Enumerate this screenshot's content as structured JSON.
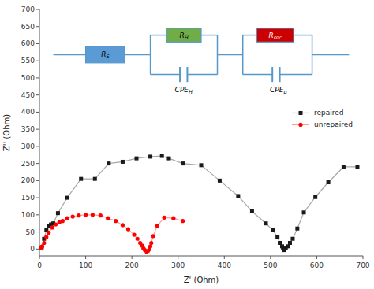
{
  "chart_data": {
    "type": "line",
    "xlabel": "Z' (Ohm)",
    "ylabel": "Z'' (Ohm)",
    "xlim": [
      0,
      700
    ],
    "ylim": [
      -20,
      700
    ],
    "xticks": [
      0,
      100,
      200,
      300,
      400,
      500,
      600,
      700
    ],
    "yticks": [
      0,
      50,
      100,
      150,
      200,
      250,
      300,
      350,
      400,
      450,
      500,
      550,
      600,
      650,
      700
    ],
    "grid": false,
    "legend": "right",
    "series": [
      {
        "name": "repaired",
        "color": "#1a1a1a",
        "marker": "square",
        "x": [
          5,
          10,
          15,
          20,
          25,
          30,
          40,
          60,
          90,
          120,
          150,
          180,
          210,
          240,
          265,
          280,
          310,
          350,
          390,
          430,
          460,
          490,
          505,
          515,
          520,
          525,
          527,
          530,
          533,
          537,
          542,
          548,
          558,
          572,
          597,
          625,
          658,
          688
        ],
        "values": [
          5,
          30,
          55,
          68,
          72,
          75,
          105,
          150,
          205,
          205,
          250,
          255,
          265,
          270,
          272,
          265,
          250,
          245,
          200,
          155,
          110,
          75,
          55,
          35,
          18,
          8,
          2,
          -3,
          2,
          8,
          18,
          30,
          60,
          107,
          152,
          195,
          240,
          240
        ]
      },
      {
        "name": "unrepaired",
        "color": "#ff0000",
        "marker": "circle",
        "x": [
          3,
          6,
          10,
          15,
          20,
          28,
          35,
          43,
          50,
          60,
          72,
          85,
          100,
          115,
          132,
          148,
          165,
          180,
          192,
          205,
          212,
          218,
          222,
          225,
          228,
          232,
          235,
          238,
          240,
          242,
          246,
          255,
          270,
          290,
          310
        ],
        "values": [
          2,
          8,
          18,
          35,
          48,
          63,
          72,
          78,
          82,
          90,
          95,
          98,
          100,
          100,
          98,
          90,
          82,
          70,
          58,
          42,
          30,
          18,
          10,
          2,
          -3,
          -8,
          -5,
          0,
          8,
          18,
          38,
          68,
          92,
          90,
          82
        ]
      }
    ],
    "annotations": [
      {
        "text": "RS",
        "color": "#5b9bd5"
      },
      {
        "text": "RH",
        "color": "#70ad47"
      },
      {
        "text": "CPEH"
      },
      {
        "text": "Rrec",
        "color": "#cc0000"
      },
      {
        "text": "CPEμ"
      }
    ]
  }
}
